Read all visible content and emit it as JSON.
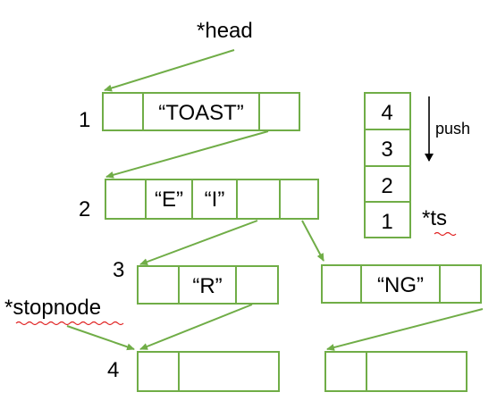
{
  "colors": {
    "box_stroke": "#70ad47",
    "arrow": "#70ad47",
    "text": "#000000",
    "squiggle": "#e02020"
  },
  "pointers": {
    "head": "*head",
    "stopnode": "*stopnode",
    "ts": "*ts"
  },
  "levels": {
    "l1": "1",
    "l2": "2",
    "l3": "3",
    "l4": "4"
  },
  "nodes": {
    "node1": {
      "label": "“TOAST”"
    },
    "node2": {
      "label_a": "“E”",
      "label_b": "“I”"
    },
    "node3a": {
      "label": "“R”"
    },
    "node3b": {
      "label": "“NG”"
    },
    "node4a": {
      "label": ""
    },
    "node4b": {
      "label": ""
    }
  },
  "stack": {
    "items": [
      "4",
      "3",
      "2",
      "1"
    ],
    "push_label": "push"
  }
}
